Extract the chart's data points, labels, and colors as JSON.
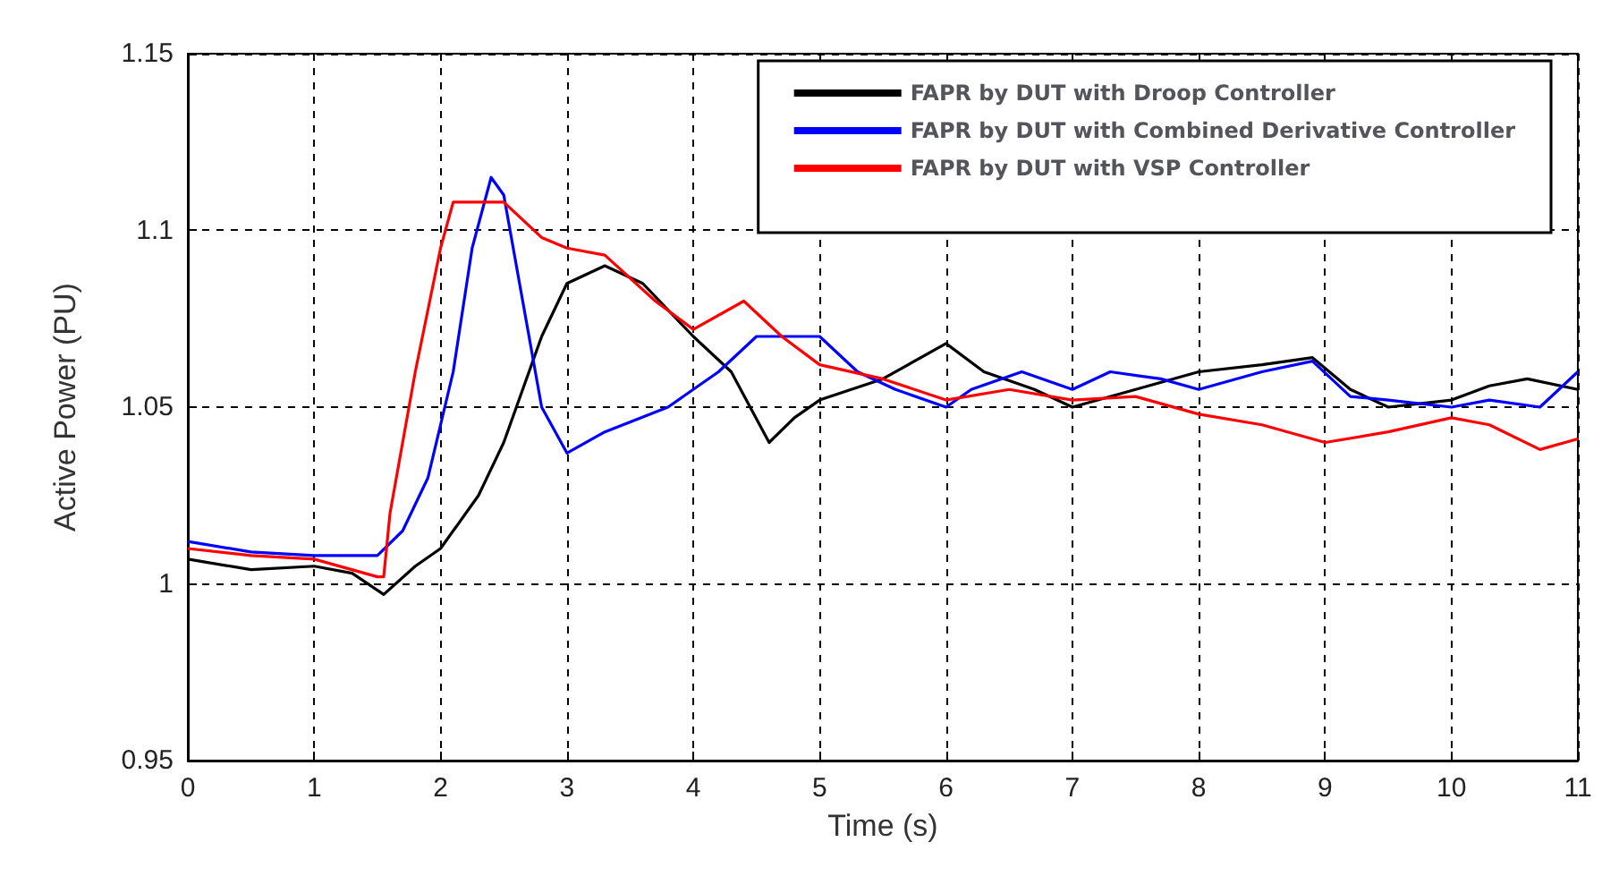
{
  "chart_data": {
    "type": "line",
    "xlabel": "Time (s)",
    "ylabel": "Active Power (PU)",
    "xlim": [
      0,
      11
    ],
    "xticks": [
      0,
      1,
      2,
      3,
      4,
      5,
      6,
      7,
      8,
      9,
      10,
      11
    ],
    "ylim": [
      0.95,
      1.15
    ],
    "yticks": [
      0.95,
      1,
      1.05,
      1.1,
      1.15
    ],
    "grid": true,
    "legend": "top right",
    "line_style": "solid",
    "marker": "none",
    "series": [
      {
        "name": "FAPR by DUT with Droop Controller",
        "color": "#000000",
        "x": [
          0,
          0.5,
          1,
          1.3,
          1.55,
          1.8,
          2,
          2.3,
          2.5,
          2.8,
          3,
          3.3,
          3.6,
          4,
          4.3,
          4.6,
          4.8,
          5,
          5.5,
          6,
          6.3,
          6.7,
          7,
          7.5,
          8,
          8.5,
          8.9,
          9.2,
          9.5,
          10,
          10.3,
          10.6,
          11
        ],
        "values": [
          1.007,
          1.004,
          1.005,
          1.003,
          0.997,
          1.005,
          1.01,
          1.025,
          1.04,
          1.07,
          1.085,
          1.09,
          1.085,
          1.07,
          1.06,
          1.04,
          1.047,
          1.052,
          1.058,
          1.068,
          1.06,
          1.055,
          1.05,
          1.055,
          1.06,
          1.062,
          1.064,
          1.055,
          1.05,
          1.052,
          1.056,
          1.058,
          1.055
        ]
      },
      {
        "name": "FAPR by DUT with Combined Derivative Controller",
        "color": "#0000ff",
        "x": [
          0,
          0.5,
          1,
          1.5,
          1.7,
          1.9,
          2.1,
          2.25,
          2.4,
          2.5,
          2.65,
          2.8,
          3,
          3.3,
          3.8,
          4.2,
          4.5,
          5,
          5.3,
          5.6,
          6,
          6.2,
          6.6,
          7,
          7.3,
          7.7,
          8,
          8.5,
          8.9,
          9.2,
          9.5,
          10,
          10.3,
          10.7,
          11
        ],
        "values": [
          1.012,
          1.009,
          1.008,
          1.008,
          1.015,
          1.03,
          1.06,
          1.095,
          1.115,
          1.11,
          1.08,
          1.05,
          1.037,
          1.043,
          1.05,
          1.06,
          1.07,
          1.07,
          1.06,
          1.055,
          1.05,
          1.055,
          1.06,
          1.055,
          1.06,
          1.058,
          1.055,
          1.06,
          1.063,
          1.053,
          1.052,
          1.05,
          1.052,
          1.05,
          1.06
        ]
      },
      {
        "name": "FAPR by DUT with VSP Controller",
        "color": "#ff0000",
        "x": [
          0,
          0.5,
          1,
          1.5,
          1.55,
          1.6,
          1.8,
          2,
          2.1,
          2.5,
          2.8,
          3,
          3.3,
          3.7,
          4,
          4.4,
          4.7,
          5,
          5.5,
          6,
          6.5,
          7,
          7.5,
          8,
          8.5,
          9,
          9.5,
          10,
          10.3,
          10.7,
          11
        ],
        "values": [
          1.01,
          1.008,
          1.007,
          1.002,
          1.002,
          1.02,
          1.06,
          1.095,
          1.108,
          1.108,
          1.098,
          1.095,
          1.093,
          1.08,
          1.072,
          1.08,
          1.07,
          1.062,
          1.058,
          1.052,
          1.055,
          1.052,
          1.053,
          1.048,
          1.045,
          1.04,
          1.043,
          1.047,
          1.045,
          1.038,
          1.041
        ]
      }
    ]
  }
}
